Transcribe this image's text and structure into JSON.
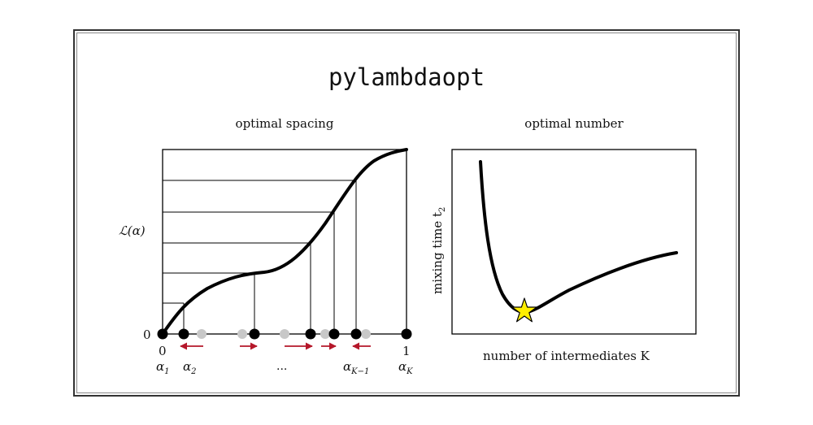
{
  "title": "pylambdaopt",
  "left_panel": {
    "subtitle": "optimal spacing",
    "ylabel": "ℒ(α)",
    "y_zero": "0",
    "x_zero": "0",
    "x_one": "1",
    "labels": {
      "a1": "α",
      "a1_sub": "1",
      "a2": "α",
      "a2_sub": "2",
      "dots": "...",
      "ak1": "α",
      "ak1_sub": "K−1",
      "ak": "α",
      "ak_sub": "K"
    }
  },
  "right_panel": {
    "subtitle": "optimal number",
    "ylabel": "mixing time t",
    "ylabel_sub": "2",
    "xlabel": "number of intermediates K"
  },
  "colors": {
    "arrow": "#b5172a",
    "star_fill": "#ffee00",
    "ghost_dot": "#c8c8c8",
    "ink": "#000000"
  }
}
